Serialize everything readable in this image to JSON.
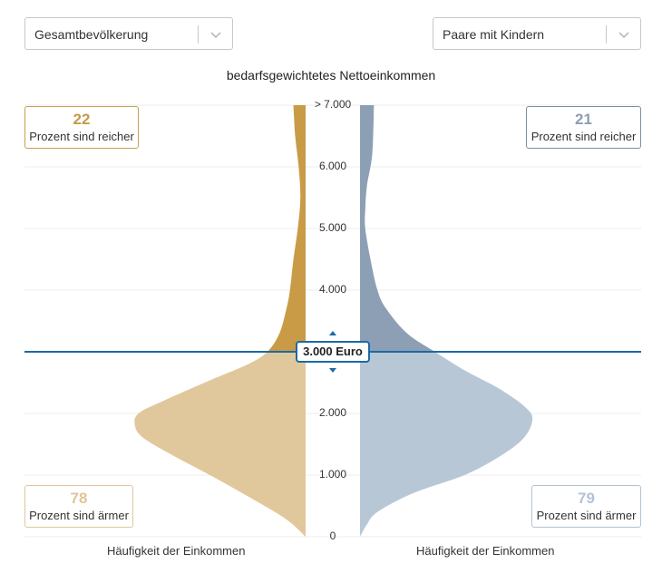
{
  "filters": {
    "left_value": "Gesamtbevölkerung",
    "right_value": "Paare mit Kindern"
  },
  "chart_title": "bedarfsgewichtetes Nettoeinkommen",
  "marker": {
    "label": "3.000 Euro",
    "value": 3000
  },
  "left": {
    "richer_value": "22",
    "richer_text": "Prozent sind reicher",
    "poorer_value": "78",
    "poorer_text": "Prozent sind ärmer",
    "xlabel": "Häufigkeit der Einkommen",
    "color_upper": "#c99b46",
    "color_lower": "#e1c89c"
  },
  "right": {
    "richer_value": "21",
    "richer_text": "Prozent sind reicher",
    "poorer_value": "79",
    "poorer_text": "Prozent sind ärmer",
    "xlabel": "Häufigkeit der Einkommen",
    "color_upper": "#8d9fb5",
    "color_lower": "#b7c7d5"
  },
  "accent_color": "#1a6aa6",
  "chart_data": {
    "type": "area",
    "y_axis": {
      "ticks": [
        0,
        1000,
        2000,
        3000,
        4000,
        5000,
        6000,
        7000
      ],
      "tick_labels": [
        "0",
        "1.000",
        "2.000",
        "",
        "4.000",
        "5.000",
        "6.000",
        "> 7.000"
      ],
      "ylim": [
        0,
        7000
      ]
    },
    "series": [
      {
        "side": "left",
        "income": [
          0,
          300,
          700,
          1000,
          1300,
          1600,
          1800,
          2000,
          2200,
          2500,
          2800,
          3000,
          3300,
          3700,
          4000,
          4500,
          5000,
          5500,
          6000,
          6500,
          7000
        ],
        "density": [
          0.0,
          0.12,
          0.36,
          0.55,
          0.75,
          0.93,
          0.98,
          0.96,
          0.82,
          0.58,
          0.33,
          0.22,
          0.15,
          0.11,
          0.09,
          0.07,
          0.045,
          0.03,
          0.04,
          0.06,
          0.07
        ]
      },
      {
        "side": "right",
        "income": [
          0,
          200,
          400,
          700,
          1000,
          1300,
          1600,
          1900,
          2100,
          2400,
          2700,
          3000,
          3300,
          3700,
          4000,
          4500,
          5000,
          5300,
          5700,
          6200,
          7000
        ],
        "density": [
          0.0,
          0.04,
          0.1,
          0.3,
          0.6,
          0.8,
          0.94,
          0.99,
          0.95,
          0.8,
          0.6,
          0.43,
          0.27,
          0.15,
          0.1,
          0.06,
          0.03,
          0.03,
          0.04,
          0.07,
          0.08
        ]
      }
    ]
  }
}
